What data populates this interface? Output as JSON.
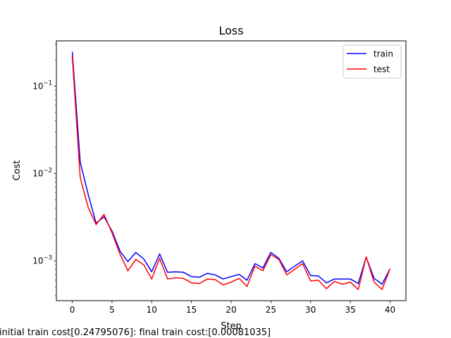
{
  "chart_data": {
    "type": "line",
    "title": "Loss",
    "xlabel": "Step",
    "ylabel": "Cost",
    "yscale": "log",
    "xlim": [
      -2,
      42
    ],
    "ylim": [
      0.00035,
      0.33
    ],
    "xticks": [
      0,
      5,
      10,
      15,
      20,
      25,
      30,
      35,
      40
    ],
    "yticks": [
      {
        "value": 0.1,
        "label": "10",
        "exp": "−1"
      },
      {
        "value": 0.01,
        "label": "10",
        "exp": "−2"
      },
      {
        "value": 0.001,
        "label": "10",
        "exp": "−3"
      }
    ],
    "grid": false,
    "legend_position": "top-right",
    "x": [
      0,
      1,
      2,
      3,
      4,
      5,
      6,
      7,
      8,
      9,
      10,
      11,
      12,
      13,
      14,
      15,
      16,
      17,
      18,
      19,
      20,
      21,
      22,
      23,
      24,
      25,
      26,
      27,
      28,
      29,
      30,
      31,
      32,
      33,
      34,
      35,
      36,
      37,
      38,
      39,
      40
    ],
    "series": [
      {
        "name": "train",
        "color": "#0000ff",
        "values": [
          0.248,
          0.0135,
          0.0058,
          0.0027,
          0.0032,
          0.0022,
          0.0013,
          0.00098,
          0.00125,
          0.00105,
          0.00075,
          0.0012,
          0.00074,
          0.00075,
          0.00074,
          0.00066,
          0.00065,
          0.00072,
          0.00069,
          0.00062,
          0.00066,
          0.0007,
          0.0006,
          0.00093,
          0.00083,
          0.00125,
          0.00107,
          0.00075,
          0.00087,
          0.001,
          0.00068,
          0.00067,
          0.00056,
          0.00062,
          0.00062,
          0.00062,
          0.00055,
          0.0011,
          0.00063,
          0.00054,
          0.00081
        ]
      },
      {
        "name": "test",
        "color": "#ff0000",
        "values": [
          0.22,
          0.009,
          0.0041,
          0.0026,
          0.0034,
          0.0021,
          0.0012,
          0.00077,
          0.00104,
          0.0009,
          0.00062,
          0.00107,
          0.00062,
          0.00064,
          0.00063,
          0.00056,
          0.00055,
          0.00062,
          0.00061,
          0.00053,
          0.00057,
          0.00063,
          0.00051,
          0.00087,
          0.00077,
          0.00118,
          0.00104,
          0.00069,
          0.0008,
          0.00093,
          0.00059,
          0.0006,
          0.00048,
          0.00058,
          0.00054,
          0.00057,
          0.00047,
          0.00111,
          0.00057,
          0.00047,
          0.00081
        ]
      }
    ]
  },
  "caption": "initial train cost[0.24795076]: final train cost:[0.00081035]"
}
